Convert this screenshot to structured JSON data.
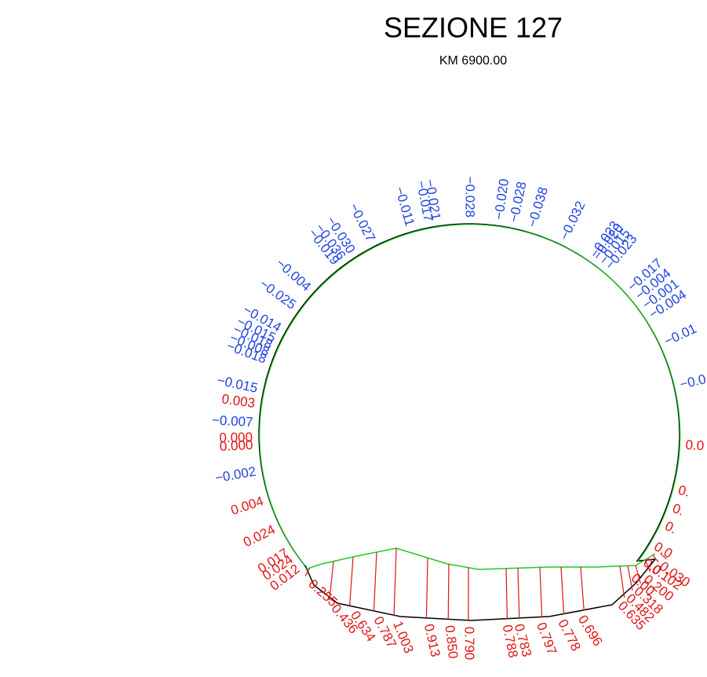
{
  "title": "SEZIONE 127",
  "subtitle": "KM 6900.00",
  "overbreak_labels": [
    "−0.002",
    "−0.007",
    "−0.015",
    "−0.018",
    "−0.008",
    "−0.018",
    "−0.015",
    "−0.014",
    "−0.025",
    "−0.004",
    "−0.019",
    "−0.036",
    "−0.030",
    "−0.027",
    "−0.011",
    "−0.017",
    "−0.021",
    "−0.028",
    "−0.020",
    "−0.028",
    "−0.038",
    "−0.032",
    "−0.023",
    "−0.020",
    "−0.015",
    "−0.023",
    "−0.017",
    "−0.004",
    "−0.001",
    "−0.004",
    "−0.01",
    "−0.0"
  ],
  "side_labels": [
    "0.003",
    "0.000",
    "0.000",
    "0.004",
    "0.024",
    "0.017",
    "0.024",
    "0.012",
    "0.0",
    "0.",
    "0.",
    "0.",
    "0.0",
    "0.0",
    "0.00"
  ],
  "invert_labels": [
    "0.255",
    "0.436",
    "0.634",
    "0.787",
    "1.003",
    "0.913",
    "0.850",
    "0.790",
    "0.788",
    "0.783",
    "0.797",
    "0.778",
    "0.696",
    "0.635",
    "0.482",
    "0.318",
    "0.200",
    "0.102",
    "0.030"
  ]
}
